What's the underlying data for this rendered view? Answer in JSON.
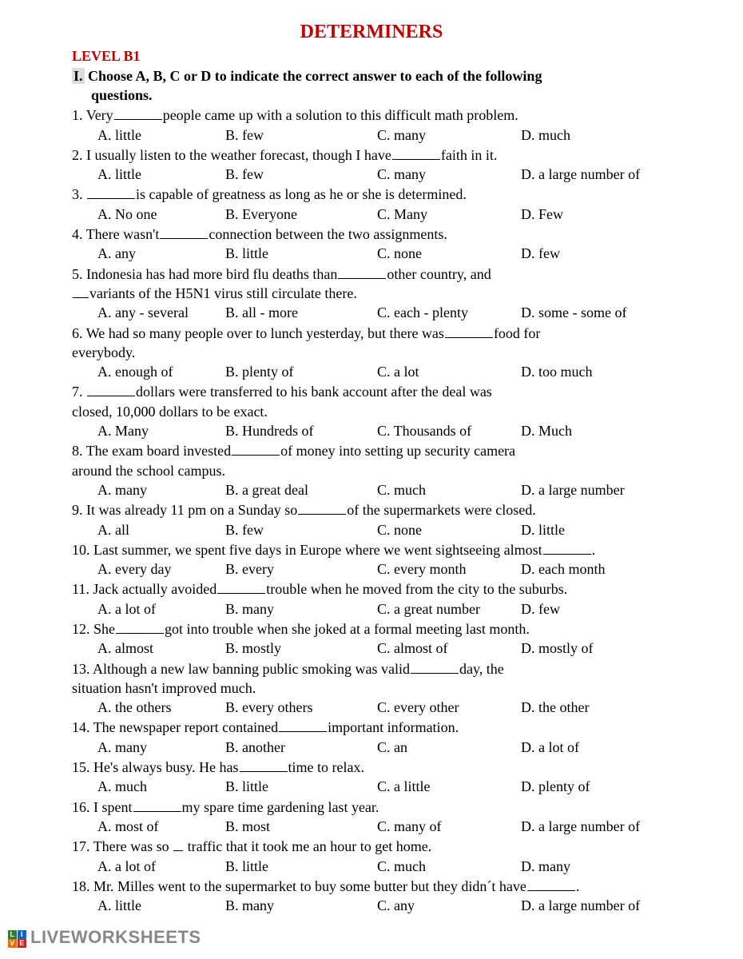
{
  "title": "DETERMINERS",
  "level": "LEVEL B1",
  "instruction_marker": "I.",
  "instruction_line1": "Choose A, B, C or D to indicate the correct answer to each of the following",
  "instruction_line2": "questions.",
  "questions": [
    {
      "n": "1.",
      "pre": "Very",
      "post": "people came up with a solution to this difficult math problem.",
      "a": "A. little",
      "b": "B. few",
      "c": "C. many",
      "d": "D. much"
    },
    {
      "n": "2.",
      "pre": "I usually listen to the weather forecast, though I have",
      "post": "faith in it.",
      "a": "A. little",
      "b": "B. few",
      "c": "C. many",
      "d": "D. a large number of"
    },
    {
      "n": "3.",
      "pre": "",
      "post": "is capable of greatness as long as he or she is determined.",
      "a": "A. No one",
      "b": "B. Everyone",
      "c": "C. Many",
      "d": "D. Few"
    },
    {
      "n": "4.",
      "pre": "There wasn't",
      "post": "connection between the two assignments.",
      "a": "A. any",
      "b": "B. little",
      "c": "C. none",
      "d": "D. few"
    },
    {
      "n": "5.",
      "pre": "Indonesia has had more bird flu  deaths than",
      "post": "other country, and",
      "line2pre": "",
      "line2post": "variants of the H5N1 virus still circulate there.",
      "a": "A. any - several",
      "b": "B. all - more",
      "c": "C. each - plenty",
      "d": "D. some - some of"
    },
    {
      "n": "6.",
      "pre": "We had so many people over to lunch yesterday, but there was",
      "post": "food for",
      "line2": "everybody.",
      "a": "A. enough of",
      "b": "B. plenty of",
      "c": "C. a lot",
      "d": "D. too much"
    },
    {
      "n": "7.",
      "pre": "",
      "post": "dollars were transferred to his bank account after the deal was",
      "line2": "closed, 10,000 dollars to be exact.",
      "a": "A. Many",
      "b": "B. Hundreds of",
      "c": "C. Thousands of",
      "d": "D. Much"
    },
    {
      "n": "8.",
      "pre": " The  exam board  invested",
      "post": "of money into setting up security camera",
      "line2": "around the school campus.",
      "a": "A. many",
      "b": "B. a great deal",
      "c": "C. much",
      "d": "D. a large number"
    },
    {
      "n": "9.",
      "pre": "It was already 11 pm on a Sunday so",
      "post": "of the supermarkets were closed.",
      "a": "A. all",
      "b": "B. few",
      "c": "C. none",
      "d": "D. little"
    },
    {
      "n": "10.",
      "pre": "Last summer, we spent five days in Europe where we went sightseeing almost",
      "post": ".",
      "a": "A. every day",
      "b": "B. every",
      "c": "C. every month",
      "d": "D. each month"
    },
    {
      "n": "11.",
      "pre": "Jack actually avoided",
      "post": "trouble when he moved from the city to the suburbs.",
      "a": "A. a lot of",
      "b": "B. many",
      "c": "C. a great number",
      "d": "D. few"
    },
    {
      "n": "12.",
      "pre": "She",
      "post": "got into trouble when she joked at a formal meeting last month.",
      "a": "A. almost",
      "b": "B. mostly",
      "c": "C. almost of",
      "d": "D. mostly of"
    },
    {
      "n": "13.",
      "pre": "Although a new law banning public smoking was valid",
      "post": "day, the",
      "line2": "situation hasn't improved much.",
      "a": "A. the others",
      "b": "B. every others",
      "c": "C. every other",
      "d": "D. the other"
    },
    {
      "n": "14.",
      "pre": "The newspaper report contained",
      "post": "important information.",
      "a": "A. many",
      "b": "B. another",
      "c": "C. an",
      "d": "D. a lot of"
    },
    {
      "n": "15.",
      "pre": "He's always busy. He has",
      "post": "time to relax.",
      "a": "A. much",
      "b": "B. little",
      "c": "C. a little",
      "d": "D. plenty of"
    },
    {
      "n": "16.",
      "pre": "I spent",
      "post": "my spare time gardening last year.",
      "a": "A. most of",
      "b": "B. most",
      "c": "C. many of",
      "d": "D. a large number of"
    },
    {
      "n": "17.",
      "pre": "There was so ",
      "post": " traffic that it took me an hour to get home.",
      "shortblank": true,
      "a": "A. a lot of",
      "b": "B. little",
      "c": "C. much",
      "d": "D. many"
    },
    {
      "n": "18.",
      "pre": "Mr. Milles went to the supermarket to buy some butter but they didn´t have",
      "post": ".",
      "a": "A. little",
      "b": "B. many",
      "c": "C. any",
      "d": "D. a large number of"
    }
  ],
  "footer": "LIVEWORKSHEETS",
  "logo_colors": {
    "tl": "#2e7d32",
    "tr": "#1565c0",
    "bl": "#ef6c00",
    "br": "#c62828"
  },
  "logo_letters": {
    "tl": "L",
    "tr": "I",
    "bl": "V",
    "br": "E"
  }
}
